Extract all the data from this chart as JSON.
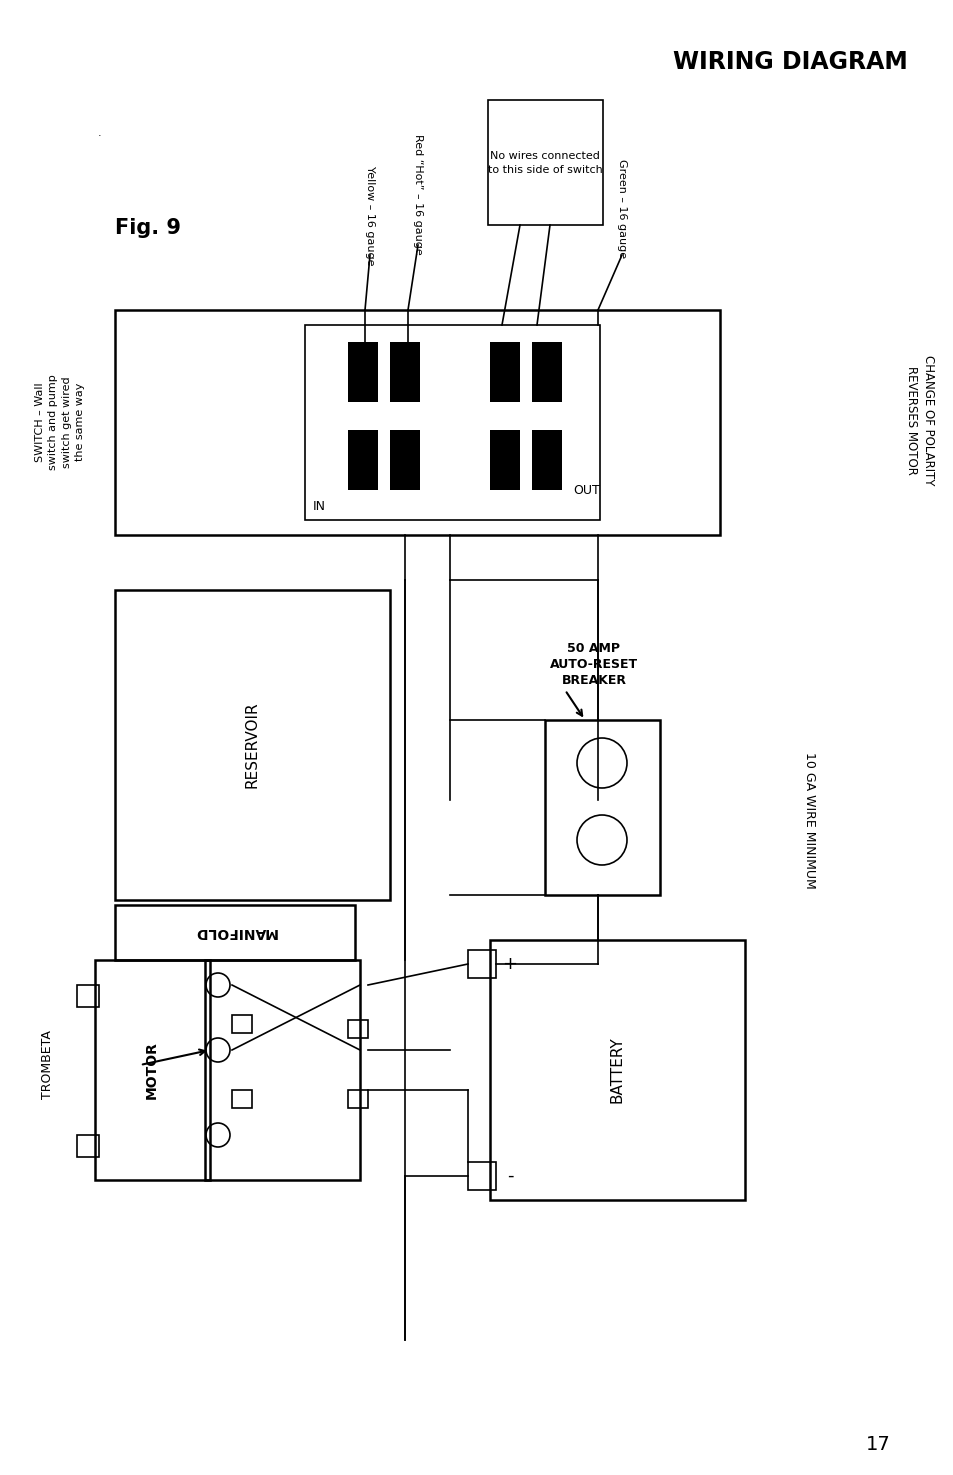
{
  "title": "WIRING DIAGRAM",
  "fig_label": "Fig. 9",
  "page_number": "17",
  "bg_color": "#ffffff",
  "annotations": {
    "yellow_wire": "Yellow – 16 gauge",
    "red_wire": "Red “Hot” – 16 gauge",
    "no_wires": "No wires connected\nto this side of switch",
    "green_wire": "Green – 16 gauge",
    "switch_label": "SWITCH – Wall\nswitch and pump\nswitch get wired\nthe same way",
    "change_polarity": "CHANGE OF POLARITY\nREVERSES MOTOR",
    "in_label": "IN",
    "out_label": "OUT",
    "reservoir": "RESERVOIR",
    "manifold": "MANIFOLD",
    "motor": "MOTOR",
    "trombeta": "TROMBETA",
    "breaker": "50 AMP\nAUTO-RESET\nBREAKER",
    "wire_gauge": "10 GA WIRE MINIMUM",
    "battery": "BATTERY",
    "plus": "+",
    "minus": "-"
  }
}
